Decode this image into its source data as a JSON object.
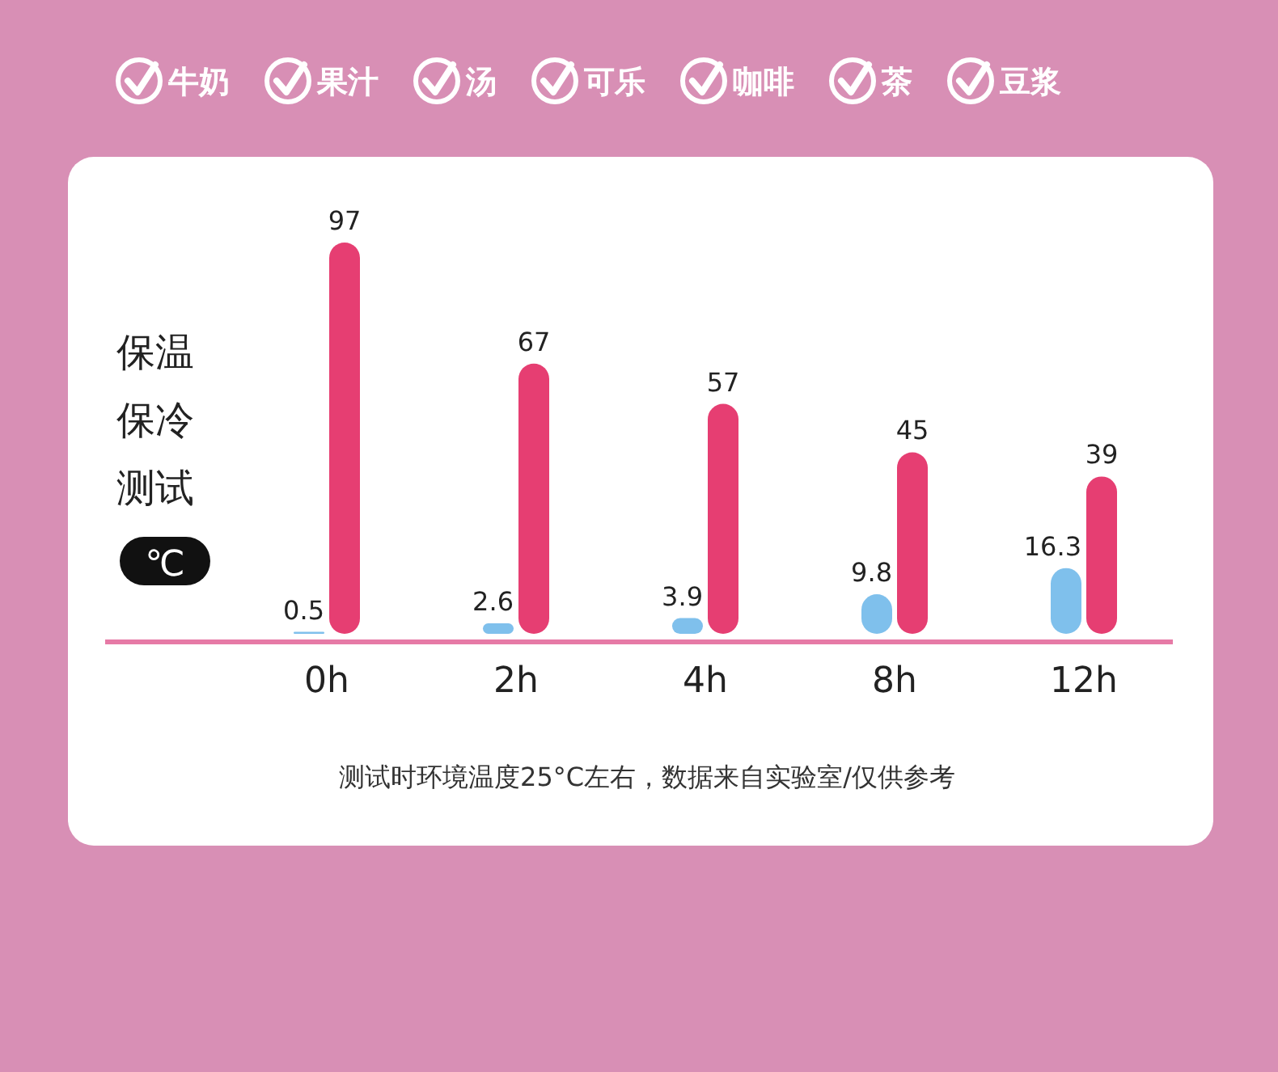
{
  "chart_data": {
    "type": "bar",
    "ylabel": "保温保冷测试℃",
    "categories": [
      "0h",
      "2h",
      "4h",
      "8h",
      "12h"
    ],
    "series": [
      {
        "color": "#7fc0ec",
        "values": [
          0.5,
          2.6,
          3.9,
          9.8,
          16.3
        ]
      },
      {
        "color": "#e63e72",
        "values": [
          97,
          67,
          57,
          45,
          39
        ]
      }
    ],
    "data_labels": true,
    "annotations": [
      "牛奶",
      "果汁",
      "汤",
      "可乐",
      "咖啡",
      "茶",
      "豆浆",
      "测试时环境温度25°C左右，数据来自实验室/仅供参考"
    ]
  }
}
